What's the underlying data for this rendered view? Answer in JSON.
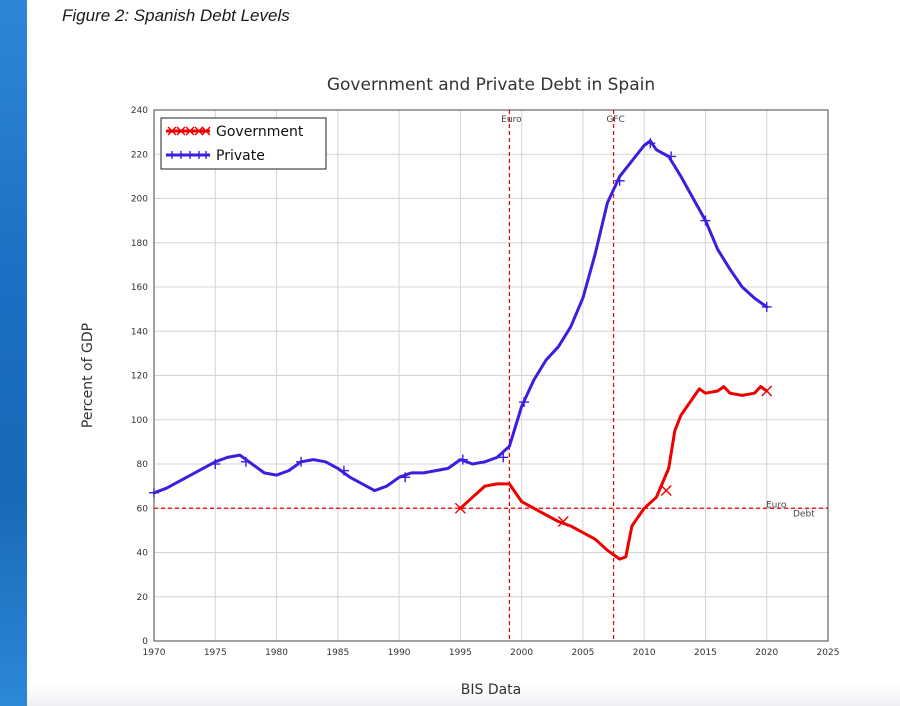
{
  "caption": "Figure 2: Spanish Debt Levels",
  "chart_data": {
    "type": "line",
    "title": "Government and Private Debt in Spain",
    "xlabel": "BIS Data",
    "ylabel": "Percent of GDP",
    "xlim": [
      1970,
      2025
    ],
    "ylim": [
      0,
      240
    ],
    "x_ticks": [
      1970,
      1975,
      1980,
      1985,
      1990,
      1995,
      2000,
      2005,
      2010,
      2015,
      2020,
      2025
    ],
    "y_ticks": [
      0,
      20,
      40,
      60,
      80,
      100,
      120,
      140,
      160,
      180,
      200,
      220,
      240
    ],
    "grid": true,
    "legend_position": "top-left",
    "series": [
      {
        "name": "Government",
        "color": "#ee0000",
        "marker": "x",
        "points": [
          [
            1995.0,
            60
          ],
          [
            1996.0,
            65
          ],
          [
            1997.0,
            70
          ],
          [
            1998.0,
            71
          ],
          [
            1999.0,
            71
          ],
          [
            2000.0,
            63
          ],
          [
            2001.0,
            60
          ],
          [
            2002.0,
            57
          ],
          [
            2003.0,
            54
          ],
          [
            2004.0,
            52
          ],
          [
            2005.0,
            49
          ],
          [
            2006.0,
            46
          ],
          [
            2007.0,
            41
          ],
          [
            2008.0,
            37
          ],
          [
            2008.5,
            38
          ],
          [
            2009.0,
            52
          ],
          [
            2010.0,
            60
          ],
          [
            2011.0,
            65
          ],
          [
            2012.0,
            78
          ],
          [
            2012.5,
            95
          ],
          [
            2013.0,
            102
          ],
          [
            2014.0,
            110
          ],
          [
            2014.5,
            114
          ],
          [
            2015.0,
            112
          ],
          [
            2016.0,
            113
          ],
          [
            2016.5,
            115
          ],
          [
            2017.0,
            112
          ],
          [
            2018.0,
            111
          ],
          [
            2019.0,
            112
          ],
          [
            2019.5,
            115
          ],
          [
            2020.0,
            113
          ]
        ],
        "marked_points": [
          [
            1995.0,
            60
          ],
          [
            2003.4,
            54
          ],
          [
            2011.8,
            68
          ],
          [
            2020.0,
            113
          ]
        ]
      },
      {
        "name": "Private",
        "color": "#3a1fe0",
        "marker": "+",
        "points": [
          [
            1970.0,
            67
          ],
          [
            1971.0,
            69
          ],
          [
            1972.0,
            72
          ],
          [
            1973.0,
            75
          ],
          [
            1974.0,
            78
          ],
          [
            1975.0,
            81
          ],
          [
            1976.0,
            83
          ],
          [
            1977.0,
            84
          ],
          [
            1978.0,
            80
          ],
          [
            1979.0,
            76
          ],
          [
            1980.0,
            75
          ],
          [
            1981.0,
            77
          ],
          [
            1982.0,
            81
          ],
          [
            1983.0,
            82
          ],
          [
            1984.0,
            81
          ],
          [
            1985.0,
            78
          ],
          [
            1986.0,
            74
          ],
          [
            1987.0,
            71
          ],
          [
            1988.0,
            68
          ],
          [
            1989.0,
            70
          ],
          [
            1990.0,
            74
          ],
          [
            1991.0,
            76
          ],
          [
            1992.0,
            76
          ],
          [
            1993.0,
            77
          ],
          [
            1994.0,
            78
          ],
          [
            1995.0,
            82
          ],
          [
            1996.0,
            80
          ],
          [
            1997.0,
            81
          ],
          [
            1998.0,
            83
          ],
          [
            1999.0,
            88
          ],
          [
            2000.0,
            106
          ],
          [
            2001.0,
            118
          ],
          [
            2002.0,
            127
          ],
          [
            2003.0,
            133
          ],
          [
            2004.0,
            142
          ],
          [
            2005.0,
            155
          ],
          [
            2006.0,
            175
          ],
          [
            2007.0,
            198
          ],
          [
            2008.0,
            210
          ],
          [
            2009.0,
            217
          ],
          [
            2010.0,
            224
          ],
          [
            2010.5,
            226
          ],
          [
            2011.0,
            222
          ],
          [
            2012.0,
            219
          ],
          [
            2013.0,
            210
          ],
          [
            2014.0,
            200
          ],
          [
            2015.0,
            190
          ],
          [
            2016.0,
            177
          ],
          [
            2017.0,
            168
          ],
          [
            2018.0,
            160
          ],
          [
            2019.0,
            155
          ],
          [
            2020.0,
            151
          ]
        ],
        "marked_points": [
          [
            1970.0,
            67
          ],
          [
            1975.0,
            80
          ],
          [
            1977.5,
            81
          ],
          [
            1982.0,
            81
          ],
          [
            1985.5,
            77
          ],
          [
            1990.5,
            74
          ],
          [
            1995.2,
            82
          ],
          [
            1998.5,
            83
          ],
          [
            2000.2,
            108
          ],
          [
            2008.0,
            208
          ],
          [
            2010.5,
            225
          ],
          [
            2012.2,
            219
          ],
          [
            2015.0,
            190
          ],
          [
            2020.0,
            151
          ]
        ]
      }
    ],
    "annotations": [
      {
        "type": "vline",
        "x": 1999,
        "label": "Euro"
      },
      {
        "type": "vline",
        "x": 2007.5,
        "label": "GFC"
      },
      {
        "type": "hline",
        "y": 60,
        "label_1": "Euro",
        "label_2": "Debt"
      }
    ],
    "annotation_color": "#ee0000"
  }
}
